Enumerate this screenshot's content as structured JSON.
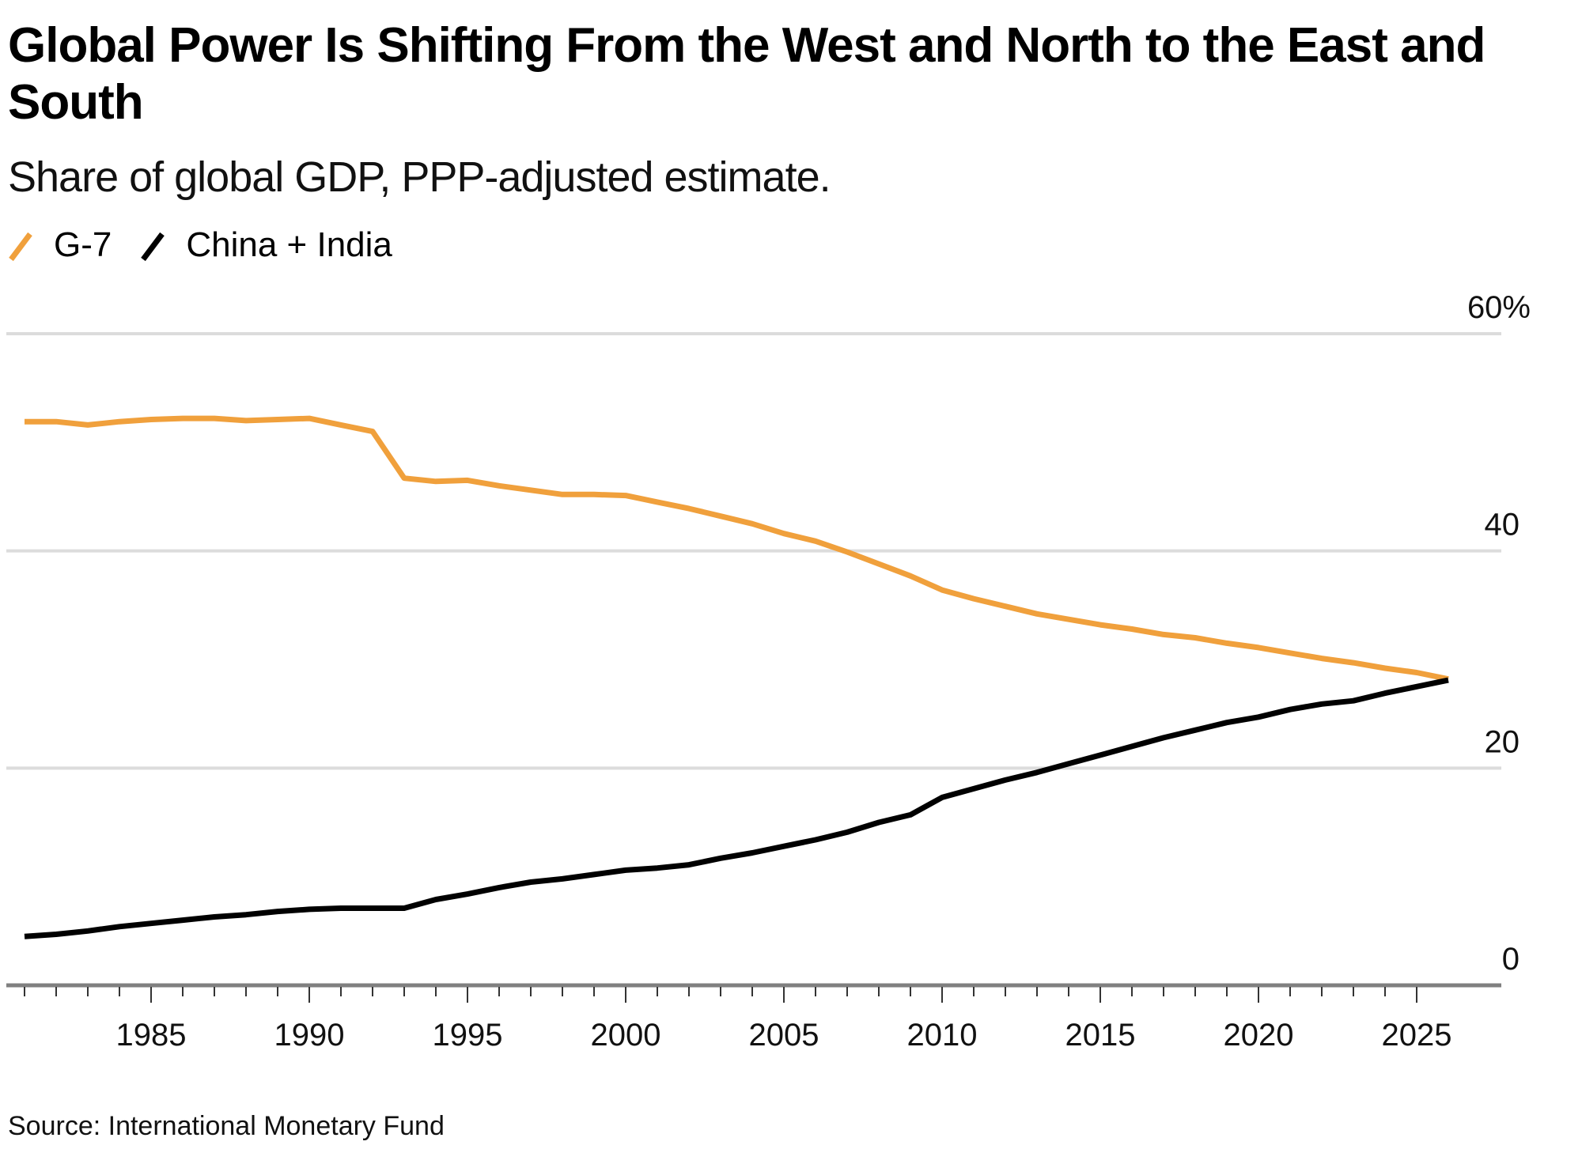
{
  "header": {
    "title": "Global Power Is Shifting From the West and North to the East and South",
    "subtitle": "Share of global GDP, PPP-adjusted estimate."
  },
  "legend": [
    {
      "label": "G-7",
      "color": "#F0A03C"
    },
    {
      "label": "China + India",
      "color": "#000000"
    }
  ],
  "footer": {
    "source": "Source: International Monetary Fund"
  },
  "chart_data": {
    "type": "line",
    "title": "Global Power Is Shifting From the West and North to the East and South",
    "subtitle": "Share of global GDP, PPP-adjusted estimate.",
    "xlabel": "",
    "ylabel": "",
    "x": [
      1981,
      1982,
      1983,
      1984,
      1985,
      1986,
      1987,
      1988,
      1989,
      1990,
      1991,
      1992,
      1993,
      1994,
      1995,
      1996,
      1997,
      1998,
      1999,
      2000,
      2001,
      2002,
      2003,
      2004,
      2005,
      2006,
      2007,
      2008,
      2009,
      2010,
      2011,
      2012,
      2013,
      2014,
      2015,
      2016,
      2017,
      2018,
      2019,
      2020,
      2021,
      2022,
      2023,
      2024,
      2025,
      2026
    ],
    "series": [
      {
        "name": "G-7",
        "color": "#F0A03C",
        "values": [
          51.9,
          51.9,
          51.6,
          51.9,
          52.1,
          52.2,
          52.2,
          52.0,
          52.1,
          52.2,
          51.6,
          51.0,
          46.7,
          46.4,
          46.5,
          46.0,
          45.6,
          45.2,
          45.2,
          45.1,
          44.5,
          43.9,
          43.2,
          42.5,
          41.6,
          40.9,
          39.9,
          38.8,
          37.7,
          36.4,
          35.6,
          34.9,
          34.2,
          33.7,
          33.2,
          32.8,
          32.3,
          32.0,
          31.5,
          31.1,
          30.6,
          30.1,
          29.7,
          29.2,
          28.8,
          28.2
        ]
      },
      {
        "name": "China + India",
        "color": "#000000",
        "values": [
          4.5,
          4.7,
          5.0,
          5.4,
          5.7,
          6.0,
          6.3,
          6.5,
          6.8,
          7.0,
          7.1,
          7.1,
          7.1,
          7.9,
          8.4,
          9.0,
          9.5,
          9.8,
          10.2,
          10.6,
          10.8,
          11.1,
          11.7,
          12.2,
          12.8,
          13.4,
          14.1,
          15.0,
          15.7,
          17.3,
          18.1,
          18.9,
          19.6,
          20.4,
          21.2,
          22.0,
          22.8,
          23.5,
          24.2,
          24.7,
          25.4,
          25.9,
          26.2,
          26.9,
          27.5,
          28.1
        ]
      }
    ],
    "xlim": [
      1980,
      2028
    ],
    "ylim": [
      0,
      60
    ],
    "x_ticks": [
      1985,
      1990,
      1995,
      2000,
      2005,
      2010,
      2015,
      2020,
      2025
    ],
    "x_tick_labels": [
      "1985",
      "1990",
      "1995",
      "2000",
      "2005",
      "2010",
      "2015",
      "2020",
      "2025"
    ],
    "minor_x_ticks_every": 1,
    "y_ticks": [
      0,
      20,
      40,
      60
    ],
    "y_tick_labels": [
      "0",
      "20",
      "40",
      "60%"
    ],
    "y_axis_side": "right",
    "grid": true,
    "legend_position": "top-left",
    "source": "Source: International Monetary Fund"
  }
}
